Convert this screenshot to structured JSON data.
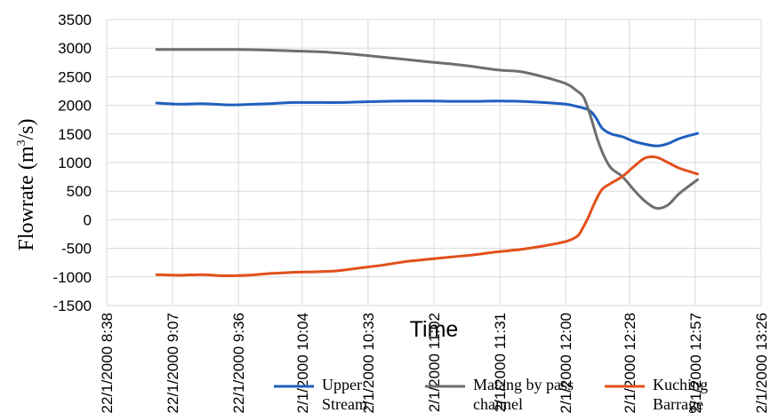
{
  "chart_data": {
    "type": "line",
    "xlabel": "Time",
    "ylabel_main": "Flowrate (m",
    "ylabel_sup": "3",
    "ylabel_end": "/s)",
    "ylim": [
      -1500,
      3500
    ],
    "yticks": [
      3500,
      3000,
      2500,
      2000,
      1500,
      1000,
      500,
      0,
      -500,
      -1000,
      -1500
    ],
    "xlim_minutes": [
      518,
      806
    ],
    "xticks": [
      {
        "t": 518,
        "label": "22/1/2000 8:38"
      },
      {
        "t": 547,
        "label": "22/1/2000 9:07"
      },
      {
        "t": 576,
        "label": "22/1/2000 9:36"
      },
      {
        "t": 604,
        "label": "22/1/2000 10:04"
      },
      {
        "t": 633,
        "label": "22/1/2000 10:33"
      },
      {
        "t": 662,
        "label": "22/1/2000 11:02"
      },
      {
        "t": 691,
        "label": "22/1/2000 11:31"
      },
      {
        "t": 720,
        "label": "22/1/2000 12:00"
      },
      {
        "t": 748,
        "label": "22/1/2000 12:28"
      },
      {
        "t": 777,
        "label": "22/1/2000 12:57"
      },
      {
        "t": 806,
        "label": "22/1/2000 13:26"
      }
    ],
    "grid": true,
    "legend_position": "bottom",
    "series": [
      {
        "name": "Upper Stream",
        "legend_lines": [
          "Upper",
          "Stream"
        ],
        "color": "#1f5fbf",
        "x": [
          540,
          550,
          560,
          570,
          576,
          590,
          600,
          610,
          620,
          630,
          640,
          650,
          660,
          670,
          680,
          690,
          700,
          710,
          720,
          725,
          730,
          733,
          736,
          740,
          745,
          750,
          755,
          760,
          765,
          770,
          778
        ],
        "y": [
          2040,
          2020,
          2030,
          2010,
          2010,
          2030,
          2050,
          2050,
          2050,
          2060,
          2070,
          2075,
          2075,
          2070,
          2070,
          2075,
          2070,
          2050,
          2020,
          1980,
          1920,
          1800,
          1600,
          1500,
          1450,
          1370,
          1320,
          1290,
          1330,
          1420,
          1510
        ]
      },
      {
        "name": "Matang by pass channel",
        "legend_lines": [
          "Matang by pass",
          "channel"
        ],
        "color": "#6e6e6e",
        "x": [
          540,
          560,
          576,
          590,
          600,
          615,
          630,
          645,
          660,
          675,
          690,
          700,
          710,
          720,
          725,
          728,
          731,
          734,
          737,
          740,
          745,
          750,
          755,
          760,
          765,
          770,
          778
        ],
        "y": [
          2975,
          2975,
          2975,
          2965,
          2950,
          2930,
          2880,
          2820,
          2760,
          2700,
          2620,
          2590,
          2500,
          2380,
          2250,
          2130,
          1800,
          1400,
          1100,
          900,
          750,
          520,
          320,
          200,
          260,
          460,
          700
        ]
      },
      {
        "name": "Kuching Barrage",
        "legend_lines": [
          "Kuching",
          "Barrage"
        ],
        "color": "#e2501c",
        "x": [
          540,
          550,
          560,
          570,
          580,
          590,
          600,
          610,
          620,
          630,
          640,
          650,
          660,
          670,
          680,
          690,
          700,
          710,
          720,
          725,
          727,
          730,
          733,
          736,
          740,
          745,
          750,
          755,
          760,
          765,
          770,
          778
        ],
        "y": [
          -960,
          -970,
          -960,
          -980,
          -970,
          -940,
          -920,
          -910,
          -890,
          -840,
          -790,
          -730,
          -690,
          -650,
          -610,
          -560,
          -520,
          -460,
          -380,
          -290,
          -180,
          50,
          320,
          530,
          640,
          760,
          930,
          1080,
          1090,
          1000,
          900,
          800
        ]
      }
    ]
  }
}
